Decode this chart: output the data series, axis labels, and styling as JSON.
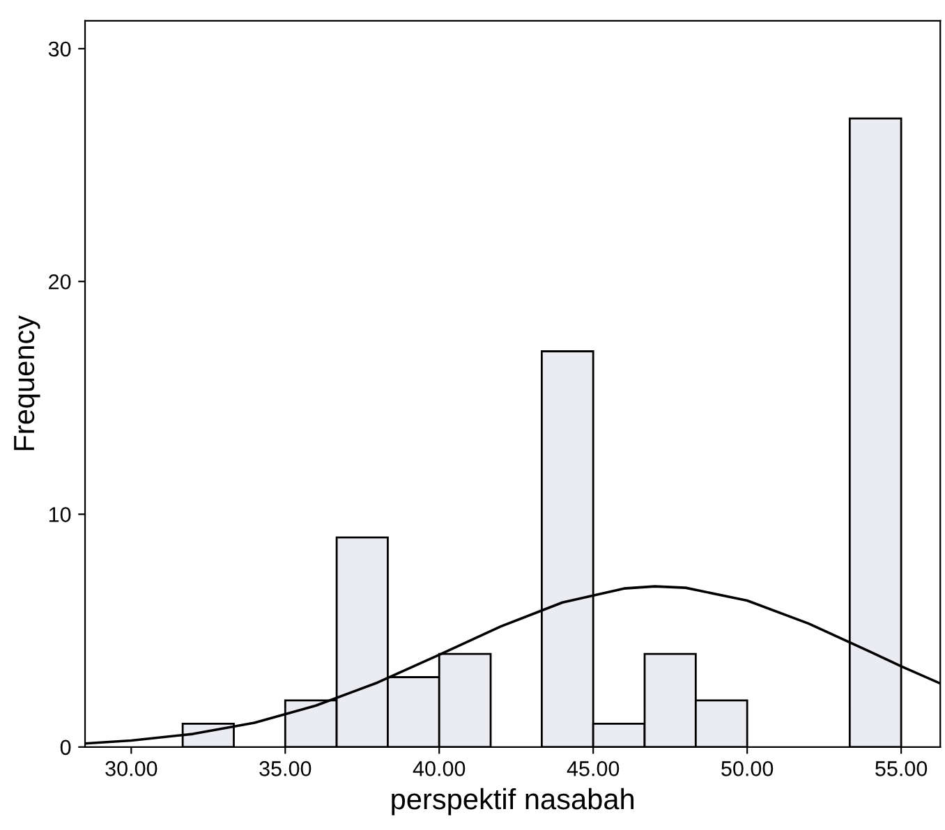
{
  "chart_data": {
    "type": "histogram",
    "xlabel": "perspektif nasabah",
    "ylabel": "Frequency",
    "bins": [
      31.67,
      33.33,
      35.0,
      36.67,
      38.33,
      40.0,
      41.67,
      43.33,
      45.0,
      46.67,
      48.33,
      50.0,
      51.67,
      53.33,
      55.0
    ],
    "values": [
      1,
      0,
      2,
      9,
      3,
      4,
      0,
      17,
      1,
      4,
      2,
      0,
      0,
      27
    ],
    "color": "#ebebf2",
    "series": [
      {
        "type": "line",
        "color": "#000000",
        "x": [
          28.5,
          30,
          32,
          34,
          36,
          38,
          40,
          42,
          44,
          46,
          47,
          48,
          50,
          52,
          54,
          55,
          56.27
        ],
        "values": [
          0.15,
          0.28,
          0.56,
          1.04,
          1.78,
          2.77,
          3.96,
          5.18,
          6.21,
          6.81,
          6.9,
          6.84,
          6.29,
          5.3,
          4.09,
          3.47,
          2.73
        ]
      }
    ],
    "xlim": [
      28.5,
      56.27
    ],
    "ylim": [
      0,
      31.2
    ],
    "xticks": [
      {
        "value": 30,
        "label": "30.00"
      },
      {
        "value": 35,
        "label": "35.00"
      },
      {
        "value": 40,
        "label": "40.00"
      },
      {
        "value": 45,
        "label": "45.00"
      },
      {
        "value": 50,
        "label": "50.00"
      },
      {
        "value": 55,
        "label": "55.00"
      }
    ],
    "yticks": [
      0,
      10,
      20,
      30
    ],
    "grid": false,
    "legend": false
  }
}
